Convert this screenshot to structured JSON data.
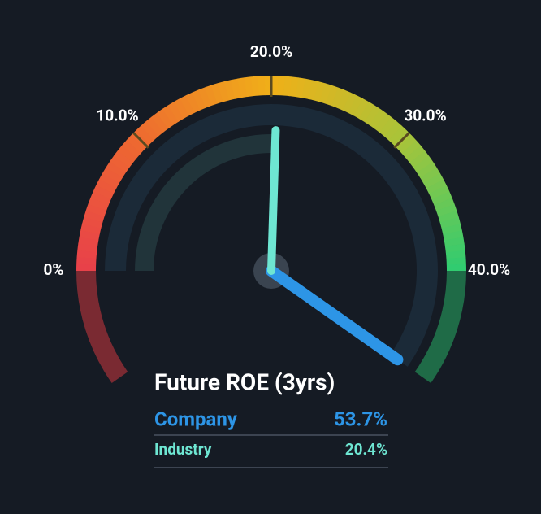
{
  "chart_data": {
    "type": "gauge",
    "title": "Future ROE (3yrs)",
    "ylim": [
      -7.8,
      47.8
    ],
    "yticks": [
      {
        "value": 0,
        "label": "0%"
      },
      {
        "value": 10,
        "label": "10.0%"
      },
      {
        "value": 20,
        "label": "20.0%"
      },
      {
        "value": 30,
        "label": "30.0%"
      },
      {
        "value": 40,
        "label": "40.0%"
      }
    ],
    "series": [
      {
        "name": "Company",
        "color": "#2d95e6",
        "value": 53.7,
        "value_label": "53.7%"
      },
      {
        "name": "Industry",
        "color": "#6ee6d2",
        "value": 20.4,
        "value_label": "20.4%"
      }
    ]
  }
}
